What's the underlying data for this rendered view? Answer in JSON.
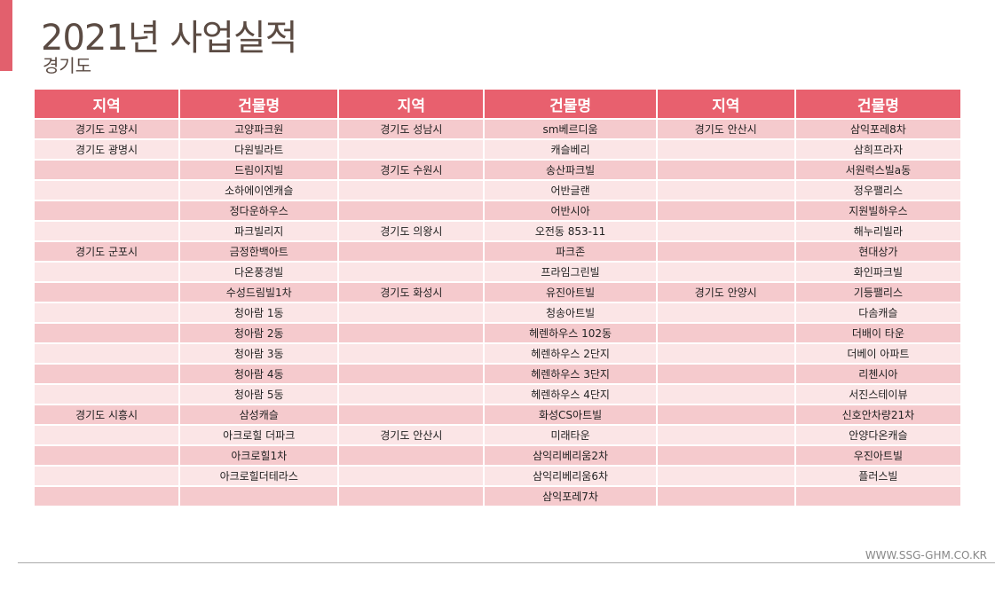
{
  "header": {
    "title": "2021년 사업실적",
    "subtitle": "경기도"
  },
  "table": {
    "columns": [
      "지역",
      "건물명",
      "지역",
      "건물명",
      "지역",
      "건물명"
    ],
    "rows": [
      [
        "경기도 고양시",
        "고양파크원",
        "경기도 성남시",
        "sm베르디움",
        "경기도 안산시",
        "삼익포레8차"
      ],
      [
        "경기도 광명시",
        "다원빌라트",
        null,
        "캐슬베리",
        null,
        "삼희프라자"
      ],
      [
        null,
        "드림이지빌",
        "경기도 수원시",
        "송산파크빌",
        null,
        "서원럭스빌a동"
      ],
      [
        null,
        "소하에이엔캐슬",
        null,
        "어반글랜",
        null,
        "정우팰리스"
      ],
      [
        null,
        "정다운하우스",
        null,
        "어반시아",
        null,
        "지원빌하우스"
      ],
      [
        null,
        "파크빌리지",
        "경기도 의왕시",
        "오전동 853-11",
        null,
        "해누리빌라"
      ],
      [
        "경기도 군포시",
        "금정한백아트",
        null,
        "파크존",
        null,
        "현대상가"
      ],
      [
        null,
        "다온풍경빌",
        null,
        "프라임그린빌",
        null,
        "화인파크빌"
      ],
      [
        null,
        "수성드림빌1차",
        "경기도 화성시",
        "유진아트빌",
        "경기도 안양시",
        "기등팰리스"
      ],
      [
        null,
        "청아람 1동",
        null,
        "청송아트빌",
        null,
        "다솜캐슬"
      ],
      [
        null,
        "청아람 2동",
        null,
        "헤렌하우스 102동",
        null,
        "더배이 타운"
      ],
      [
        null,
        "청아람 3동",
        null,
        "헤렌하우스 2단지",
        null,
        "더베이 아파트"
      ],
      [
        null,
        "청아람 4동",
        null,
        "헤렌하우스 3단지",
        null,
        "리첸시아"
      ],
      [
        null,
        "청아람 5동",
        null,
        "헤렌하우스 4단지",
        null,
        "서진스테이뷰"
      ],
      [
        "경기도 시흥시",
        "삼성캐슬",
        null,
        "화성CS아트빌",
        null,
        "신호안차량21차"
      ],
      [
        null,
        "아크로힐 더파크",
        "경기도 안산시",
        "미래타운",
        null,
        "안양다온캐슬"
      ],
      [
        null,
        "아크로힐1차",
        null,
        "삼익리베리움2차",
        null,
        "우진아트빌"
      ],
      [
        null,
        "아크로힐더테라스",
        null,
        "삼익리베리움6차",
        null,
        "플러스빌"
      ],
      [
        null,
        null,
        null,
        "삼익포레7차",
        null,
        null
      ]
    ]
  },
  "footer": {
    "url": "WWW.SSG-GHM.CO.KR"
  }
}
